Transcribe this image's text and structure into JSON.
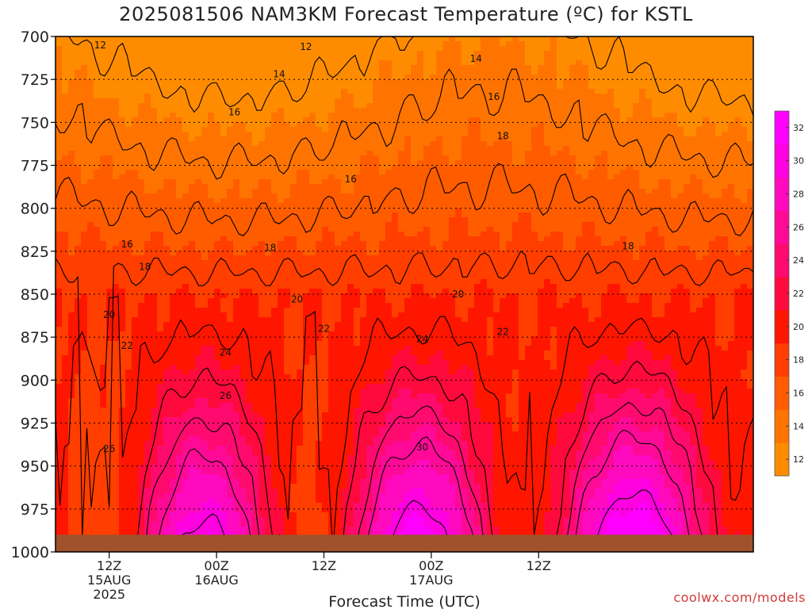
{
  "title": "2025081506 NAM3KM Forecast Temperature (ºC) for KSTL",
  "watermark": "coolwx.com/models",
  "chart_data": {
    "type": "heatmap",
    "title": "2025081506 NAM3KM Forecast Temperature (ºC) for KSTL",
    "xlabel": "Forecast Time (UTC)",
    "ylabel": "",
    "x_range_hours": [
      6,
      84
    ],
    "y_range_hpa": [
      700,
      1000
    ],
    "y_scale": "inverted",
    "yticks": [
      700,
      725,
      750,
      775,
      800,
      825,
      850,
      875,
      900,
      925,
      950,
      975,
      1000
    ],
    "xticks": [
      {
        "hour": 12,
        "lines": [
          "12Z",
          "15AUG",
          "2025"
        ]
      },
      {
        "hour": 24,
        "lines": [
          "00Z",
          "16AUG"
        ]
      },
      {
        "hour": 36,
        "lines": [
          "12Z"
        ]
      },
      {
        "hour": 48,
        "lines": [
          "00Z",
          "17AUG"
        ]
      },
      {
        "hour": 60,
        "lines": [
          "12Z"
        ]
      }
    ],
    "grid": "dotted horizontal",
    "colorbar": {
      "position": "right",
      "levels": [
        12,
        14,
        16,
        18,
        20,
        22,
        24,
        26,
        28,
        30,
        32
      ],
      "colors": [
        "#ff8c00",
        "#ff7400",
        "#ff5c00",
        "#ff3e00",
        "#ff1600",
        "#ff0a3c",
        "#ff0a6e",
        "#ff0a96",
        "#ff0abe",
        "#ff00e0",
        "#ff00ff"
      ]
    },
    "isotherms": [
      {
        "value": 12,
        "label_positions": [
          {
            "hour": 11,
            "hpa": 705
          },
          {
            "hour": 34,
            "hpa": 706
          }
        ]
      },
      {
        "value": 14,
        "label_positions": [
          {
            "hour": 31,
            "hpa": 722
          },
          {
            "hour": 53,
            "hpa": 713
          }
        ]
      },
      {
        "value": 16,
        "label_positions": [
          {
            "hour": 26,
            "hpa": 744
          },
          {
            "hour": 39,
            "hpa": 783
          },
          {
            "hour": 55,
            "hpa": 735
          },
          {
            "hour": 14,
            "hpa": 821
          }
        ]
      },
      {
        "value": 18,
        "label_positions": [
          {
            "hour": 16,
            "hpa": 834
          },
          {
            "hour": 30,
            "hpa": 823
          },
          {
            "hour": 56,
            "hpa": 758
          },
          {
            "hour": 70,
            "hpa": 822
          }
        ]
      },
      {
        "value": 20,
        "label_positions": [
          {
            "hour": 12,
            "hpa": 862
          },
          {
            "hour": 33,
            "hpa": 853
          },
          {
            "hour": 51,
            "hpa": 850
          }
        ]
      },
      {
        "value": 22,
        "label_positions": [
          {
            "hour": 14,
            "hpa": 880
          },
          {
            "hour": 36,
            "hpa": 870
          },
          {
            "hour": 56,
            "hpa": 872
          }
        ]
      },
      {
        "value": 24,
        "label_positions": [
          {
            "hour": 25,
            "hpa": 884
          },
          {
            "hour": 47,
            "hpa": 876
          }
        ]
      },
      {
        "value": 26,
        "label_positions": [
          {
            "hour": 25,
            "hpa": 909
          },
          {
            "hour": 12,
            "hpa": 940
          }
        ]
      },
      {
        "value": 30,
        "label_positions": [
          {
            "hour": 47,
            "hpa": 939
          }
        ]
      }
    ]
  }
}
